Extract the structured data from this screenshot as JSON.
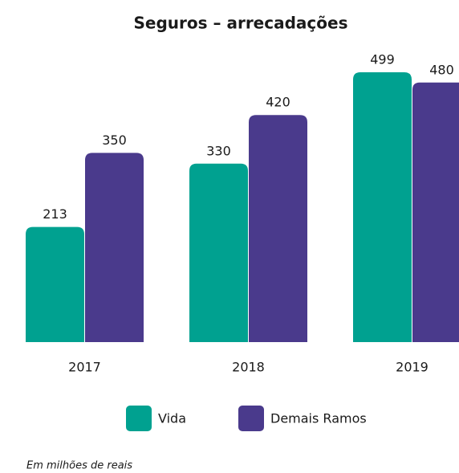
{
  "chart_data": {
    "type": "bar",
    "title": "Seguros – arrecadações",
    "categories": [
      "2017",
      "2018",
      "2019"
    ],
    "series": [
      {
        "name": "Vida",
        "color": "#00a190",
        "values": [
          213,
          330,
          499
        ]
      },
      {
        "name": "Demais Ramos",
        "color": "#4a3a8c",
        "values": [
          350,
          420,
          480
        ]
      }
    ],
    "note": "Em milhões de reais"
  }
}
